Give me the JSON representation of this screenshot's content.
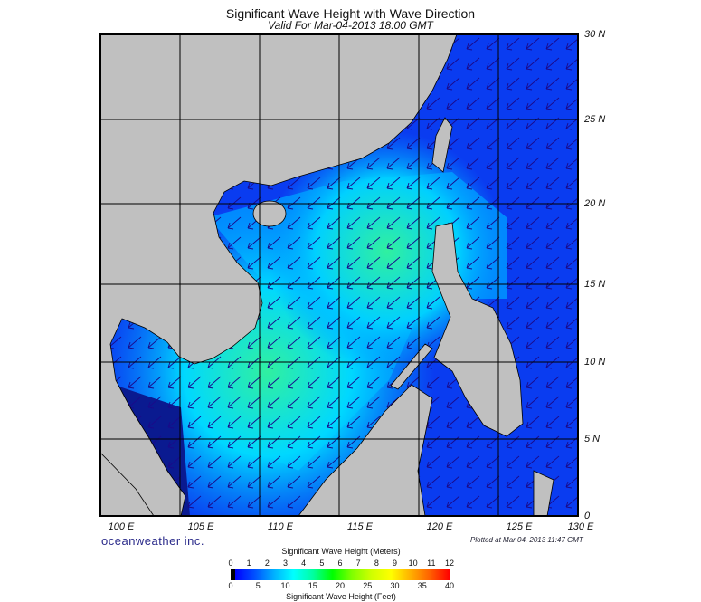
{
  "title": "Significant Wave Height with Wave Direction",
  "subtitle": "Valid For Mar-04-2013 18:00 GMT",
  "lon_labels": [
    "100 E",
    "105 E",
    "110 E",
    "115 E",
    "120 E",
    "125 E",
    "130 E"
  ],
  "lat_labels": [
    "30 N",
    "25 N",
    "20 N",
    "15 N",
    "10 N",
    "5 N",
    "0"
  ],
  "brand": "oceanweather inc.",
  "plotted": "Plotted at Mar 04, 2013 11:47 GMT",
  "colorbar": {
    "meters_label": "Significant Wave Height (Meters)",
    "feet_label": "Significant Wave Height (Feet)",
    "meters_ticks": [
      "0",
      "1",
      "2",
      "3",
      "4",
      "5",
      "6",
      "7",
      "8",
      "9",
      "10",
      "11",
      "12"
    ],
    "feet_ticks": [
      "0",
      "5",
      "10",
      "15",
      "20",
      "25",
      "30",
      "35",
      "40"
    ],
    "colors": [
      "#000000",
      "#0000ff",
      "#0050ff",
      "#00b0ff",
      "#00ffff",
      "#00ffa0",
      "#00ff00",
      "#80ff00",
      "#d0ff00",
      "#ffff00",
      "#ffb000",
      "#ff6000",
      "#ff0000"
    ]
  },
  "colors": {
    "land": "#c0c0c0",
    "arrow": "#1a0a8a",
    "sea_low": "#0a2cf0",
    "sea_mid": "#00a8ff",
    "sea_high": "#20e890"
  }
}
